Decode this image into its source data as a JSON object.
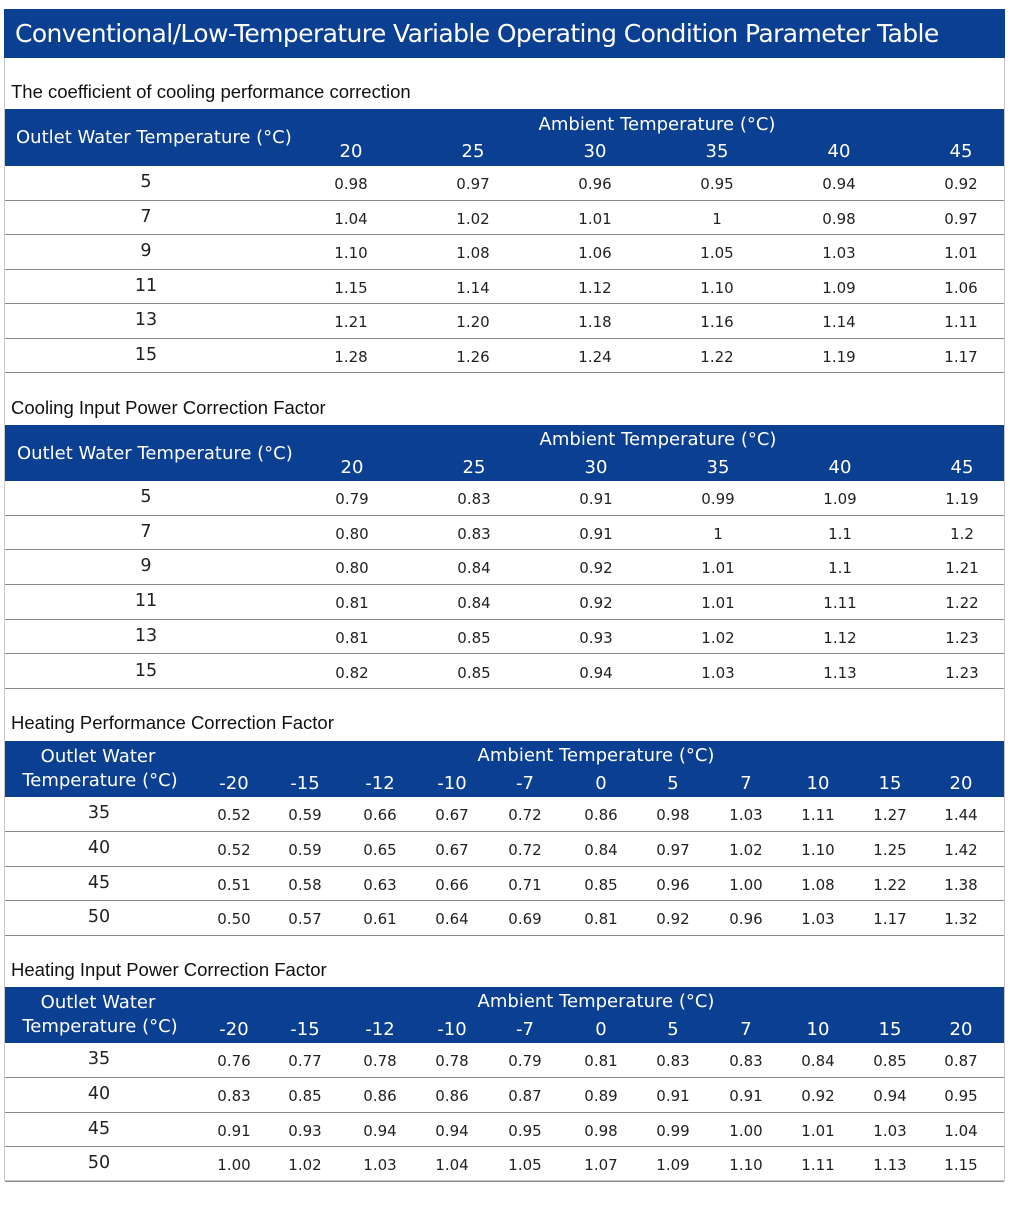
{
  "page_title": "Conventional/Low-Temperature Variable Operating Condition Parameter Table",
  "ambient_label": "Ambient Temperature (°C)",
  "tables": [
    {
      "title": "The coefficient of cooling performance correction",
      "row_header": "Outlet Water Temperature (°C)",
      "columns": [
        "20",
        "25",
        "30",
        "35",
        "40",
        "45"
      ],
      "rows": [
        {
          "label": "5",
          "values": [
            "0.98",
            "0.97",
            "0.96",
            "0.95",
            "0.94",
            "0.92"
          ]
        },
        {
          "label": "7",
          "values": [
            "1.04",
            "1.02",
            "1.01",
            "1",
            "0.98",
            "0.97"
          ]
        },
        {
          "label": "9",
          "values": [
            "1.10",
            "1.08",
            "1.06",
            "1.05",
            "1.03",
            "1.01"
          ]
        },
        {
          "label": "11",
          "values": [
            "1.15",
            "1.14",
            "1.12",
            "1.10",
            "1.09",
            "1.06"
          ]
        },
        {
          "label": "13",
          "values": [
            "1.21",
            "1.20",
            "1.18",
            "1.16",
            "1.14",
            "1.11"
          ]
        },
        {
          "label": "15",
          "values": [
            "1.28",
            "1.26",
            "1.24",
            "1.22",
            "1.19",
            "1.17"
          ]
        }
      ]
    },
    {
      "title": "Cooling Input Power Correction Factor",
      "row_header": "Outlet Water Temperature (°C)",
      "columns": [
        "20",
        "25",
        "30",
        "35",
        "40",
        "45"
      ],
      "rows": [
        {
          "label": "5",
          "values": [
            "0.79",
            "0.83",
            "0.91",
            "0.99",
            "1.09",
            "1.19"
          ]
        },
        {
          "label": "7",
          "values": [
            "0.80",
            "0.83",
            "0.91",
            "1",
            "1.1",
            "1.2"
          ]
        },
        {
          "label": "9",
          "values": [
            "0.80",
            "0.84",
            "0.92",
            "1.01",
            "1.1",
            "1.21"
          ]
        },
        {
          "label": "11",
          "values": [
            "0.81",
            "0.84",
            "0.92",
            "1.01",
            "1.11",
            "1.22"
          ]
        },
        {
          "label": "13",
          "values": [
            "0.81",
            "0.85",
            "0.93",
            "1.02",
            "1.12",
            "1.23"
          ]
        },
        {
          "label": "15",
          "values": [
            "0.82",
            "0.85",
            "0.94",
            "1.03",
            "1.13",
            "1.23"
          ]
        }
      ]
    },
    {
      "title": "Heating Performance Correction Factor",
      "row_header_line1": "Outlet Water",
      "row_header_line2": "Temperature (°C)",
      "columns": [
        "-20",
        "-15",
        "-12",
        "-10",
        "-7",
        "0",
        "5",
        "7",
        "10",
        "15",
        "20"
      ],
      "rows": [
        {
          "label": "35",
          "values": [
            "0.52",
            "0.59",
            "0.66",
            "0.67",
            "0.72",
            "0.86",
            "0.98",
            "1.03",
            "1.11",
            "1.27",
            "1.44"
          ]
        },
        {
          "label": "40",
          "values": [
            "0.52",
            "0.59",
            "0.65",
            "0.67",
            "0.72",
            "0.84",
            "0.97",
            "1.02",
            "1.10",
            "1.25",
            "1.42"
          ]
        },
        {
          "label": "45",
          "values": [
            "0.51",
            "0.58",
            "0.63",
            "0.66",
            "0.71",
            "0.85",
            "0.96",
            "1.00",
            "1.08",
            "1.22",
            "1.38"
          ]
        },
        {
          "label": "50",
          "values": [
            "0.50",
            "0.57",
            "0.61",
            "0.64",
            "0.69",
            "0.81",
            "0.92",
            "0.96",
            "1.03",
            "1.17",
            "1.32"
          ]
        }
      ]
    },
    {
      "title": "Heating Input Power Correction Factor",
      "row_header_line1": "Outlet Water",
      "row_header_line2": "Temperature (°C)",
      "columns": [
        "-20",
        "-15",
        "-12",
        "-10",
        "-7",
        "0",
        "5",
        "7",
        "10",
        "15",
        "20"
      ],
      "rows": [
        {
          "label": "35",
          "values": [
            "0.76",
            "0.77",
            "0.78",
            "0.78",
            "0.79",
            "0.81",
            "0.83",
            "0.83",
            "0.84",
            "0.85",
            "0.87"
          ]
        },
        {
          "label": "40",
          "values": [
            "0.83",
            "0.85",
            "0.86",
            "0.86",
            "0.87",
            "0.89",
            "0.91",
            "0.91",
            "0.92",
            "0.94",
            "0.95"
          ]
        },
        {
          "label": "45",
          "values": [
            "0.91",
            "0.93",
            "0.94",
            "0.94",
            "0.95",
            "0.98",
            "0.99",
            "1.00",
            "1.01",
            "1.03",
            "1.04"
          ]
        },
        {
          "label": "50",
          "values": [
            "1.00",
            "1.02",
            "1.03",
            "1.04",
            "1.05",
            "1.07",
            "1.09",
            "1.10",
            "1.11",
            "1.13",
            "1.15"
          ]
        }
      ]
    }
  ],
  "colors": {
    "header_bg": "#0b3f91",
    "header_text": "#ffffff",
    "rule": "#8a8a8a"
  }
}
